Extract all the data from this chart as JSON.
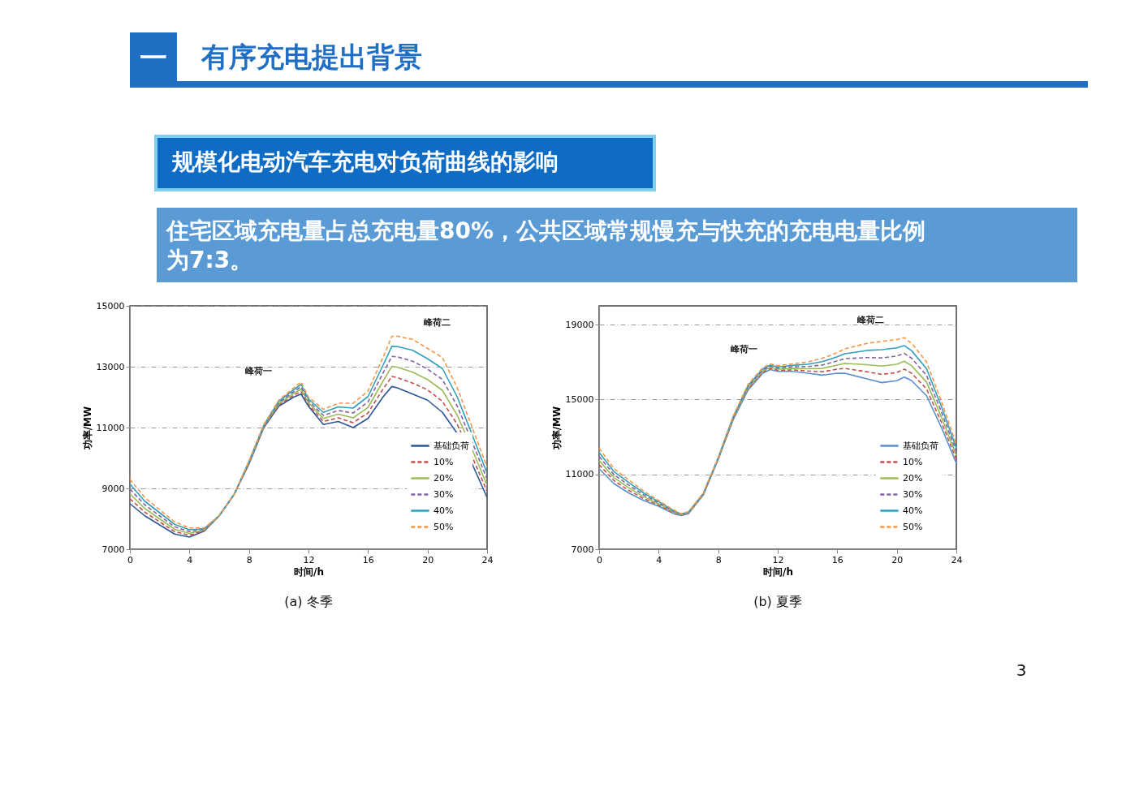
{
  "chart_data": [
    {
      "type": "line",
      "title": "有序充电提出背景",
      "subtitle": "规模化电动汽车充电对负荷曲线的影响",
      "xlabel": "时间/h",
      "ylabel": "功率/MW",
      "annotations": [
        "一",
        "住宅区域充电量占总充电量80%，公共区域常规慢充与快充的充电电量比例为7:3。",
        "峰荷一",
        "峰荷二",
        "(a) 冬季"
      ],
      "x": [
        0,
        1,
        2,
        3,
        4,
        5,
        6,
        7,
        8,
        9,
        10,
        11,
        11.5,
        12,
        13,
        14,
        15,
        16,
        17,
        17.6,
        18,
        19,
        20,
        21,
        22,
        23,
        24
      ],
      "series": [
        {
          "name": "基础负荷",
          "color": "#2c5596",
          "line_style": "solid",
          "values": [
            8500,
            8100,
            7800,
            7500,
            7400,
            7600,
            8100,
            8800,
            9800,
            11000,
            11700,
            12000,
            12100,
            11700,
            11100,
            11200,
            11000,
            11300,
            12000,
            12350,
            12300,
            12100,
            11900,
            11500,
            10800,
            9800,
            8700
          ]
        },
        {
          "name": "10%",
          "color": "#c0504d",
          "line_style": "dashed",
          "values": [
            8660,
            8220,
            7900,
            7580,
            7460,
            7620,
            8100,
            8800,
            9820,
            11020,
            11740,
            12060,
            12180,
            11760,
            11200,
            11320,
            11160,
            11480,
            12260,
            12680,
            12640,
            12460,
            12240,
            11860,
            11100,
            10040,
            8900
          ]
        },
        {
          "name": "20%",
          "color": "#9bbb59",
          "line_style": "solid",
          "values": [
            8820,
            8340,
            8000,
            7660,
            7520,
            7640,
            8100,
            8800,
            9840,
            11040,
            11780,
            12120,
            12260,
            11820,
            11300,
            11440,
            11320,
            11660,
            12520,
            13010,
            12980,
            12820,
            12580,
            12220,
            11400,
            10280,
            9100
          ]
        },
        {
          "name": "30%",
          "color": "#8064a2",
          "line_style": "dashed",
          "values": [
            8980,
            8460,
            8100,
            7740,
            7580,
            7660,
            8100,
            8800,
            9860,
            11060,
            11820,
            12180,
            12340,
            11880,
            11400,
            11560,
            11480,
            11840,
            12780,
            13340,
            13320,
            13180,
            12920,
            12580,
            11700,
            10520,
            9300
          ]
        },
        {
          "name": "40%",
          "color": "#31a0bd",
          "line_style": "solid",
          "values": [
            9140,
            8580,
            8200,
            7820,
            7640,
            7680,
            8100,
            8800,
            9880,
            11080,
            11860,
            12240,
            12420,
            11940,
            11500,
            11680,
            11640,
            12020,
            13040,
            13670,
            13660,
            13540,
            13260,
            12940,
            12000,
            10760,
            9500
          ]
        },
        {
          "name": "50%",
          "color": "#f79646",
          "line_style": "dashed",
          "values": [
            9300,
            8700,
            8300,
            7900,
            7700,
            7700,
            8100,
            8800,
            9900,
            11100,
            11900,
            12300,
            12500,
            12000,
            11600,
            11800,
            11800,
            12200,
            13300,
            14000,
            14000,
            13900,
            13600,
            13300,
            12300,
            11000,
            9700
          ]
        }
      ],
      "xlim": [
        0,
        24
      ],
      "xticks": [
        0,
        4,
        8,
        12,
        16,
        20,
        24
      ],
      "ylim": [
        7000,
        15000
      ],
      "yticks": [
        7000,
        9000,
        11000,
        13000,
        15000
      ],
      "grid": "y",
      "legend": "bottom right",
      "marker": "none"
    },
    {
      "type": "line",
      "xlabel": "时间/h",
      "ylabel": "功率/MW",
      "annotations": [
        "峰荷一",
        "峰荷二",
        "(b) 夏季",
        "3"
      ],
      "x": [
        0,
        1,
        2,
        3,
        4,
        5,
        5.5,
        6,
        7,
        8,
        9,
        10,
        11,
        11.5,
        12,
        13,
        14,
        15,
        16,
        16.5,
        17,
        18,
        19,
        20,
        20.5,
        21,
        22,
        23,
        24
      ],
      "series": [
        {
          "name": "基础负荷",
          "color": "#5b8fd0",
          "line_style": "solid",
          "values": [
            11300,
            10500,
            10000,
            9600,
            9300,
            8900,
            8800,
            8900,
            9900,
            11800,
            13900,
            15500,
            16400,
            16600,
            16500,
            16500,
            16400,
            16300,
            16400,
            16400,
            16300,
            16100,
            15900,
            16000,
            16200,
            16000,
            15200,
            13500,
            11600
          ]
        },
        {
          "name": "10%",
          "color": "#c0504d",
          "line_style": "dashed",
          "values": [
            11520,
            10660,
            10140,
            9700,
            9360,
            8940,
            8820,
            8920,
            9920,
            11820,
            13940,
            15560,
            16460,
            16660,
            16560,
            16580,
            16520,
            16480,
            16620,
            16660,
            16600,
            16480,
            16340,
            16440,
            16620,
            16400,
            15560,
            13780,
            11800
          ]
        },
        {
          "name": "20%",
          "color": "#9bbb59",
          "line_style": "solid",
          "values": [
            11740,
            10820,
            10280,
            9800,
            9420,
            8980,
            8840,
            8940,
            9940,
            11840,
            13980,
            15620,
            16520,
            16720,
            16620,
            16660,
            16640,
            16660,
            16840,
            16920,
            16900,
            16860,
            16780,
            16880,
            17040,
            16800,
            15920,
            14060,
            12000
          ]
        },
        {
          "name": "30%",
          "color": "#8064a2",
          "line_style": "dashed",
          "values": [
            11960,
            10980,
            10420,
            9900,
            9480,
            9020,
            8860,
            8960,
            9960,
            11860,
            14020,
            15680,
            16580,
            16780,
            16680,
            16740,
            16760,
            16840,
            17060,
            17180,
            17200,
            17240,
            17220,
            17320,
            17460,
            17200,
            16280,
            14340,
            12200
          ]
        },
        {
          "name": "40%",
          "color": "#31a0bd",
          "line_style": "solid",
          "values": [
            12180,
            11140,
            10560,
            10000,
            9540,
            9060,
            8880,
            8980,
            9980,
            11880,
            14060,
            15740,
            16640,
            16840,
            16740,
            16820,
            16880,
            17020,
            17280,
            17440,
            17500,
            17620,
            17660,
            17760,
            17880,
            17600,
            16640,
            14620,
            12400
          ]
        },
        {
          "name": "50%",
          "color": "#f79646",
          "line_style": "dashed",
          "values": [
            12400,
            11300,
            10700,
            10100,
            9600,
            9100,
            8900,
            9000,
            10000,
            11900,
            14100,
            15800,
            16700,
            16900,
            16800,
            16900,
            17000,
            17200,
            17500,
            17700,
            17800,
            18000,
            18100,
            18200,
            18300,
            18000,
            17000,
            14900,
            12600
          ]
        }
      ],
      "xlim": [
        0,
        24
      ],
      "xticks": [
        0,
        4,
        8,
        12,
        16,
        20,
        24
      ],
      "ylim": [
        7000,
        20000
      ],
      "yticks": [
        7000,
        11000,
        15000,
        19000
      ],
      "grid": "y",
      "legend": "bottom right",
      "marker": "none"
    }
  ]
}
